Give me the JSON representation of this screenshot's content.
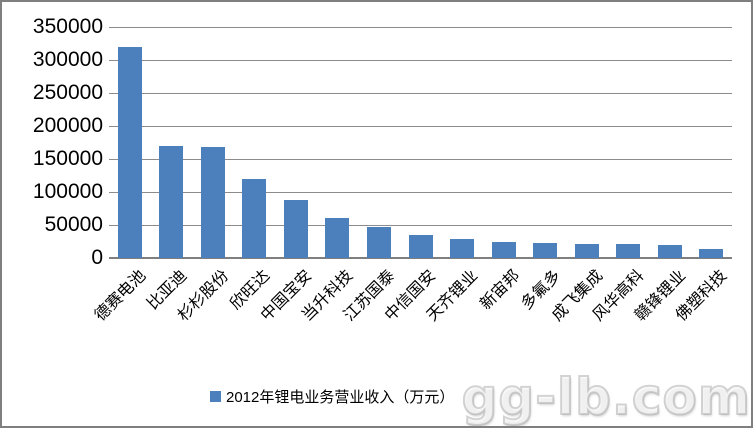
{
  "chart_data": {
    "type": "bar",
    "title": "",
    "categories": [
      "德赛电池",
      "比亚迪",
      "杉杉股份",
      "欣旺达",
      "中国宝安",
      "当升科技",
      "江苏国泰",
      "中信国安",
      "天齐锂业",
      "新宙邦",
      "多氟多",
      "成飞集成",
      "风华高科",
      "赣锋锂业",
      "佛塑科技"
    ],
    "values": [
      320000,
      170000,
      168000,
      120000,
      88000,
      60000,
      47000,
      35000,
      29000,
      25000,
      23000,
      21000,
      21000,
      20000,
      14000
    ],
    "legend": "2012年锂电业务营业收入（万元）",
    "legend_position": "bottom-center",
    "xlabel": "",
    "ylabel": "",
    "ylim": [
      0,
      350000
    ],
    "ytick_step": 50000,
    "ytick_labels": [
      "0",
      "50000",
      "100000",
      "150000",
      "200000",
      "250000",
      "300000",
      "350000"
    ],
    "grid": true,
    "bar_color": "#4c80bd",
    "gridline_color": "#8c8c8c",
    "axis_color": "#7f7f7f"
  },
  "watermark": {
    "text": "gg-lb.com"
  }
}
